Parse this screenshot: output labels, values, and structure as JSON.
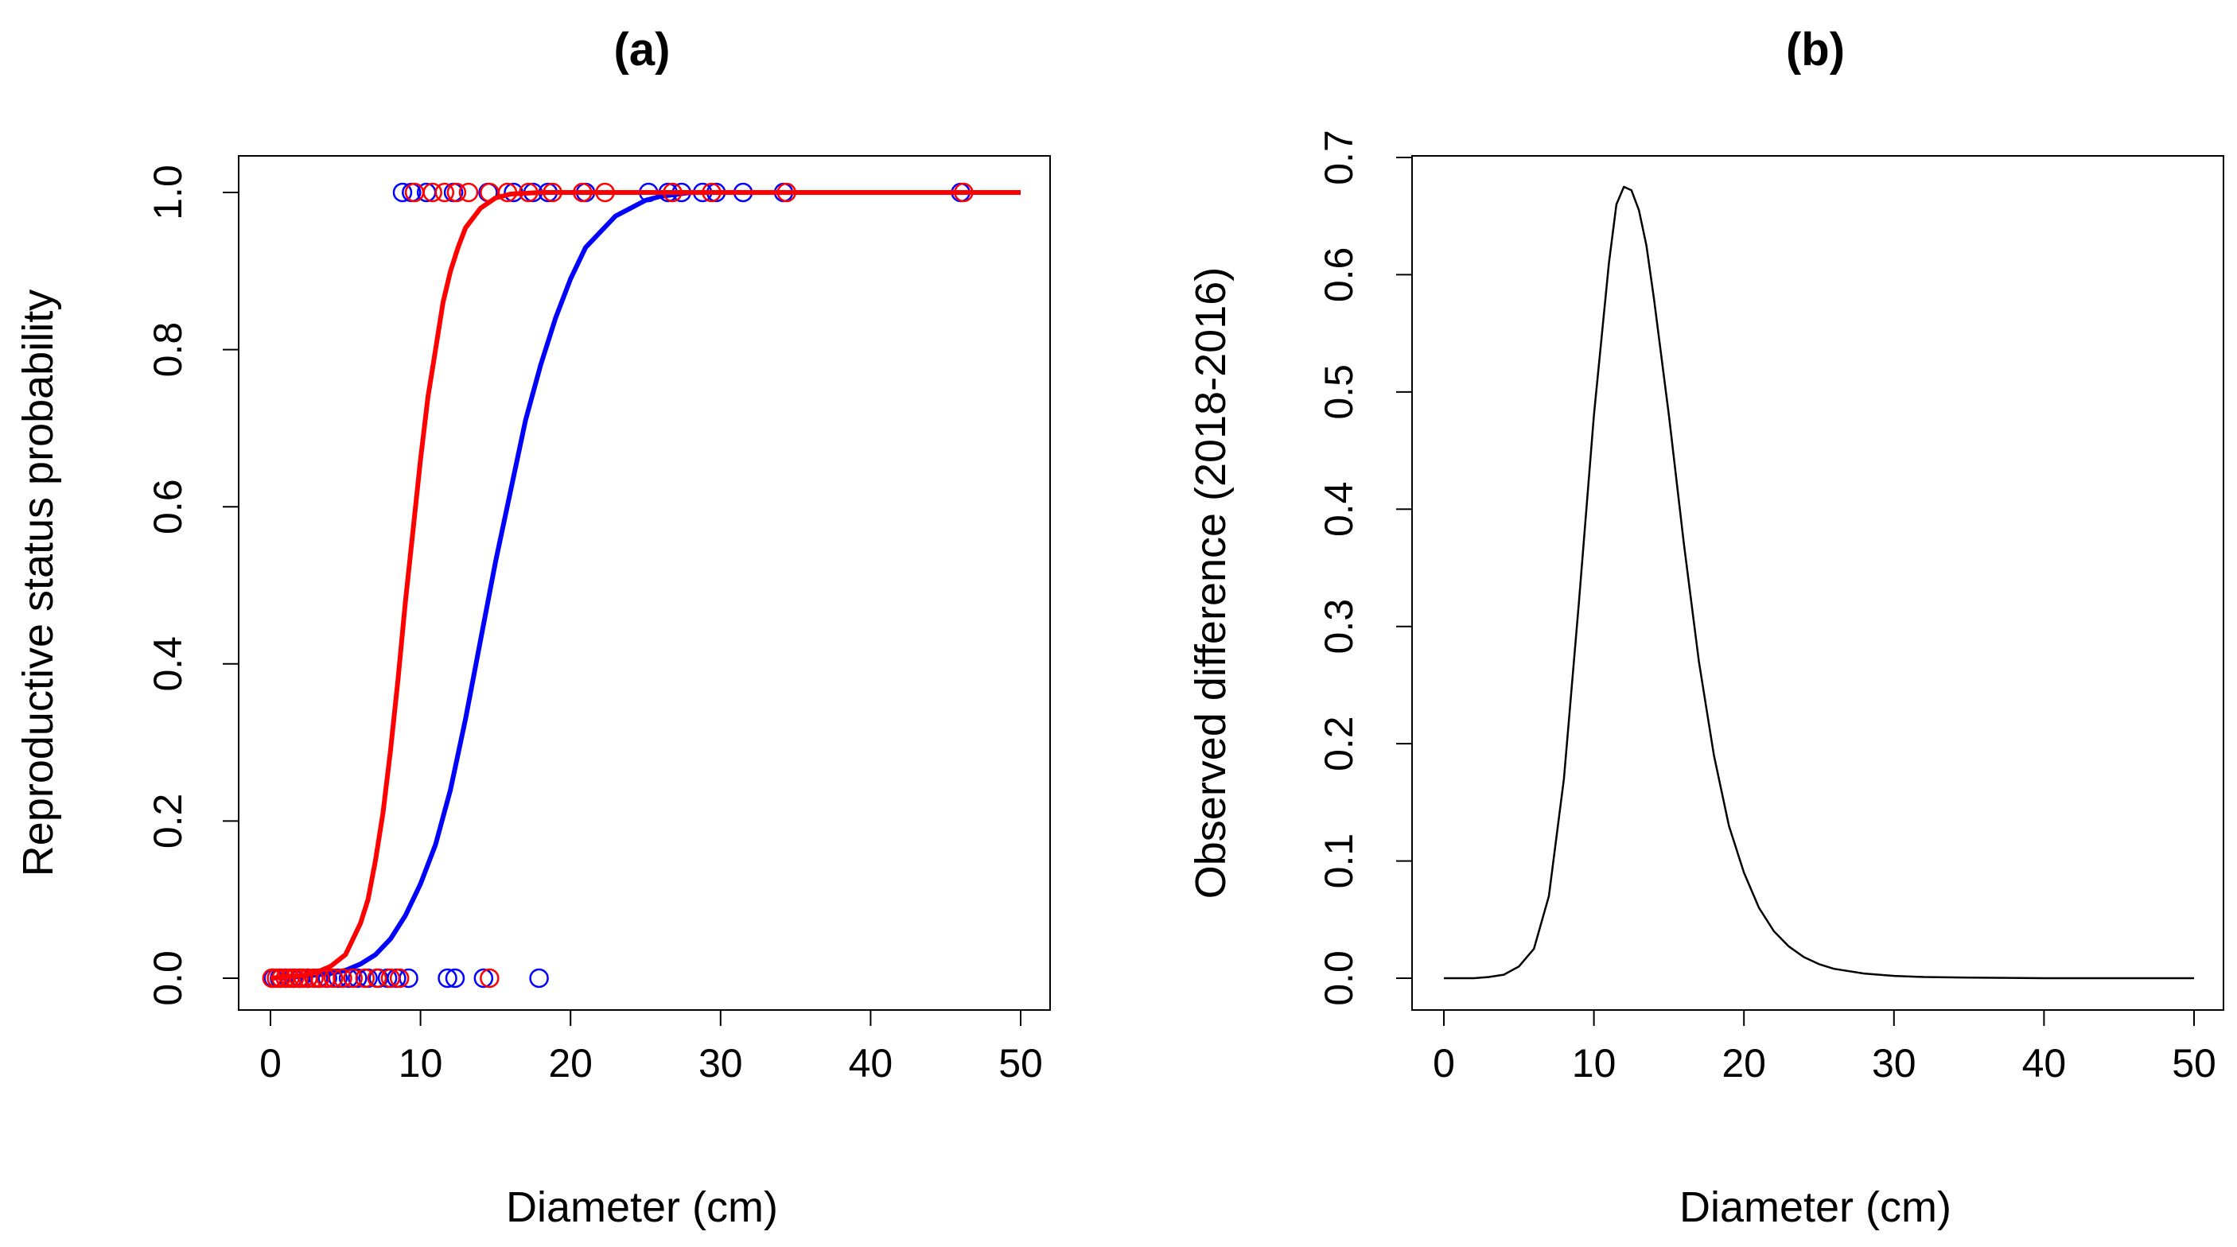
{
  "chart_data": [
    {
      "panel": "a",
      "type": "scatter+line",
      "title": "(a)",
      "xlabel": "Diameter (cm)",
      "ylabel": "Reproductive status probability",
      "xlim": [
        0,
        50
      ],
      "ylim": [
        0,
        1
      ],
      "x_ticks": [
        0,
        10,
        20,
        30,
        40,
        50
      ],
      "y_ticks": [
        "0.0",
        "0.2",
        "0.4",
        "0.6",
        "0.8",
        "1.0"
      ],
      "colors": {
        "series_2016": "#0000ff",
        "series_2018": "#ff0000"
      },
      "series": [
        {
          "name": "blue",
          "color": "#0000ff",
          "curve": {
            "x": [
              0,
              2,
              4,
              5,
              6,
              7,
              8,
              9,
              10,
              11,
              12,
              13,
              14,
              15,
              16,
              17,
              18,
              19,
              20,
              21,
              22,
              23,
              24,
              25,
              26,
              28,
              30,
              35,
              40,
              45,
              50
            ],
            "y": [
              0.0,
              0.002,
              0.006,
              0.01,
              0.018,
              0.03,
              0.05,
              0.08,
              0.12,
              0.17,
              0.24,
              0.33,
              0.43,
              0.53,
              0.62,
              0.71,
              0.78,
              0.84,
              0.89,
              0.93,
              0.95,
              0.97,
              0.98,
              0.99,
              0.995,
              1.0,
              1.0,
              1.0,
              1.0,
              1.0,
              1.0
            ]
          },
          "points": [
            {
              "x": 0.2,
              "y": 0
            },
            {
              "x": 0.6,
              "y": 0
            },
            {
              "x": 1.0,
              "y": 0
            },
            {
              "x": 1.5,
              "y": 0
            },
            {
              "x": 2.0,
              "y": 0
            },
            {
              "x": 2.5,
              "y": 0
            },
            {
              "x": 3.2,
              "y": 0
            },
            {
              "x": 3.8,
              "y": 0
            },
            {
              "x": 4.5,
              "y": 0
            },
            {
              "x": 5.2,
              "y": 0
            },
            {
              "x": 5.8,
              "y": 0
            },
            {
              "x": 6.5,
              "y": 0
            },
            {
              "x": 7.2,
              "y": 0
            },
            {
              "x": 7.8,
              "y": 0
            },
            {
              "x": 8.4,
              "y": 0
            },
            {
              "x": 9.2,
              "y": 0
            },
            {
              "x": 11.8,
              "y": 0
            },
            {
              "x": 12.3,
              "y": 0
            },
            {
              "x": 14.2,
              "y": 0
            },
            {
              "x": 17.9,
              "y": 0
            },
            {
              "x": 8.8,
              "y": 1
            },
            {
              "x": 9.4,
              "y": 1
            },
            {
              "x": 10.4,
              "y": 1
            },
            {
              "x": 12.2,
              "y": 1
            },
            {
              "x": 14.5,
              "y": 1
            },
            {
              "x": 16.2,
              "y": 1
            },
            {
              "x": 17.5,
              "y": 1
            },
            {
              "x": 18.5,
              "y": 1
            },
            {
              "x": 21.0,
              "y": 1
            },
            {
              "x": 25.2,
              "y": 1
            },
            {
              "x": 26.5,
              "y": 1
            },
            {
              "x": 27.4,
              "y": 1
            },
            {
              "x": 28.8,
              "y": 1
            },
            {
              "x": 29.7,
              "y": 1
            },
            {
              "x": 31.5,
              "y": 1
            },
            {
              "x": 34.2,
              "y": 1
            },
            {
              "x": 46.0,
              "y": 1
            }
          ]
        },
        {
          "name": "red",
          "color": "#ff0000",
          "curve": {
            "x": [
              0,
              2,
              3,
              4,
              5,
              6,
              6.5,
              7,
              7.5,
              8,
              8.5,
              9,
              9.5,
              10,
              10.5,
              11,
              11.5,
              12,
              12.5,
              13,
              14,
              15,
              16,
              18,
              20,
              30,
              40,
              50
            ],
            "y": [
              0.0,
              0.003,
              0.007,
              0.015,
              0.03,
              0.07,
              0.1,
              0.15,
              0.21,
              0.29,
              0.38,
              0.48,
              0.57,
              0.66,
              0.74,
              0.8,
              0.86,
              0.9,
              0.93,
              0.955,
              0.98,
              0.993,
              0.998,
              1.0,
              1.0,
              1.0,
              1.0,
              1.0
            ]
          },
          "points": [
            {
              "x": 0.1,
              "y": 0
            },
            {
              "x": 0.4,
              "y": 0
            },
            {
              "x": 0.7,
              "y": 0
            },
            {
              "x": 1.0,
              "y": 0
            },
            {
              "x": 1.3,
              "y": 0
            },
            {
              "x": 1.6,
              "y": 0
            },
            {
              "x": 1.9,
              "y": 0
            },
            {
              "x": 2.2,
              "y": 0
            },
            {
              "x": 2.5,
              "y": 0
            },
            {
              "x": 2.9,
              "y": 0
            },
            {
              "x": 3.3,
              "y": 0
            },
            {
              "x": 3.7,
              "y": 0
            },
            {
              "x": 4.2,
              "y": 0
            },
            {
              "x": 4.8,
              "y": 0
            },
            {
              "x": 5.5,
              "y": 0
            },
            {
              "x": 6.3,
              "y": 0
            },
            {
              "x": 7.1,
              "y": 0
            },
            {
              "x": 8.0,
              "y": 0
            },
            {
              "x": 8.6,
              "y": 0
            },
            {
              "x": 14.6,
              "y": 0
            },
            {
              "x": 9.6,
              "y": 1
            },
            {
              "x": 10.8,
              "y": 1
            },
            {
              "x": 11.6,
              "y": 1
            },
            {
              "x": 12.4,
              "y": 1
            },
            {
              "x": 13.2,
              "y": 1
            },
            {
              "x": 14.6,
              "y": 1
            },
            {
              "x": 15.8,
              "y": 1
            },
            {
              "x": 17.2,
              "y": 1
            },
            {
              "x": 18.8,
              "y": 1
            },
            {
              "x": 20.8,
              "y": 1
            },
            {
              "x": 22.3,
              "y": 1
            },
            {
              "x": 26.8,
              "y": 1
            },
            {
              "x": 29.4,
              "y": 1
            },
            {
              "x": 34.4,
              "y": 1
            },
            {
              "x": 46.2,
              "y": 1
            }
          ]
        }
      ]
    },
    {
      "panel": "b",
      "type": "line",
      "title": "(b)",
      "xlabel": "Diameter (cm)",
      "ylabel": "Observed difference (2018-2016)",
      "xlim": [
        0,
        50
      ],
      "ylim": [
        0,
        0.7
      ],
      "x_ticks": [
        0,
        10,
        20,
        30,
        40,
        50
      ],
      "y_ticks": [
        "0.0",
        "0.1",
        "0.2",
        "0.3",
        "0.4",
        "0.5",
        "0.6",
        "0.7"
      ],
      "colors": {
        "line": "#000000"
      },
      "series": [
        {
          "name": "difference",
          "color": "#000000",
          "x": [
            0,
            2,
            3,
            4,
            5,
            6,
            7,
            8,
            9,
            10,
            11,
            11.5,
            12,
            12.5,
            13,
            13.5,
            14,
            15,
            16,
            17,
            18,
            19,
            20,
            21,
            22,
            23,
            24,
            25,
            26,
            28,
            30,
            32,
            35,
            40,
            45,
            50
          ],
          "y": [
            0.0,
            0.0,
            0.001,
            0.003,
            0.01,
            0.025,
            0.07,
            0.17,
            0.32,
            0.48,
            0.61,
            0.66,
            0.675,
            0.672,
            0.655,
            0.625,
            0.58,
            0.48,
            0.37,
            0.27,
            0.19,
            0.13,
            0.09,
            0.06,
            0.04,
            0.027,
            0.018,
            0.012,
            0.008,
            0.004,
            0.002,
            0.001,
            0.0005,
            0.0,
            0.0,
            0.0
          ]
        }
      ]
    }
  ]
}
